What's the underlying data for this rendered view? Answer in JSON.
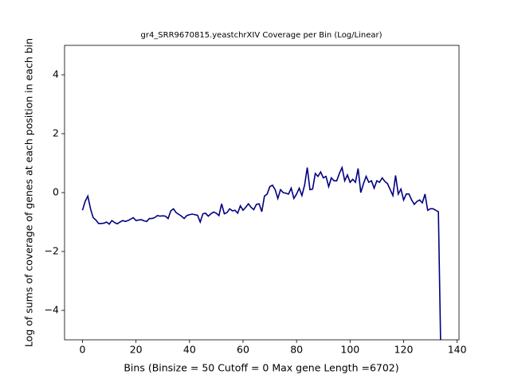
{
  "chart_data": {
    "type": "line",
    "title": "gr4_SRR9670815.yeastchrXIV Coverage per Bin (Log/Linear)",
    "x_label": "Bins  (Binsize = 50 Cutoff = 0 Max gene Length =6702)",
    "y_label": "Log of sums of coverage of genes at each position in each bin",
    "color": "#000080",
    "x": [
      0,
      1,
      2,
      3,
      4,
      5,
      6,
      7,
      8,
      9,
      10,
      11,
      12,
      13,
      14,
      15,
      16,
      17,
      18,
      19,
      20,
      21,
      22,
      23,
      24,
      25,
      26,
      27,
      28,
      29,
      30,
      31,
      32,
      33,
      34,
      35,
      36,
      37,
      38,
      39,
      40,
      41,
      42,
      43,
      44,
      45,
      46,
      47,
      48,
      49,
      50,
      51,
      52,
      53,
      54,
      55,
      56,
      57,
      58,
      59,
      60,
      61,
      62,
      63,
      64,
      65,
      66,
      67,
      68,
      69,
      70,
      71,
      72,
      73,
      74,
      75,
      76,
      77,
      78,
      79,
      80,
      81,
      82,
      83,
      84,
      85,
      86,
      87,
      88,
      89,
      90,
      91,
      92,
      93,
      94,
      95,
      96,
      97,
      98,
      99,
      100,
      101,
      102,
      103,
      104,
      105,
      106,
      107,
      108,
      109,
      110,
      111,
      112,
      113,
      114,
      115,
      116,
      117,
      118,
      119,
      120,
      121,
      122,
      123,
      124,
      125,
      126,
      127,
      128,
      129,
      130,
      131,
      132,
      133,
      134
    ],
    "values": [
      -0.6,
      -0.3,
      -0.12,
      -0.55,
      -0.85,
      -0.93,
      -1.05,
      -1.05,
      -1.04,
      -1.0,
      -1.07,
      -0.95,
      -1.02,
      -1.06,
      -1.0,
      -0.95,
      -0.98,
      -0.95,
      -0.9,
      -0.85,
      -0.95,
      -0.93,
      -0.92,
      -0.96,
      -0.98,
      -0.88,
      -0.88,
      -0.85,
      -0.78,
      -0.8,
      -0.79,
      -0.8,
      -0.88,
      -0.62,
      -0.55,
      -0.68,
      -0.74,
      -0.8,
      -0.88,
      -0.78,
      -0.75,
      -0.73,
      -0.75,
      -0.77,
      -1.0,
      -0.72,
      -0.7,
      -0.8,
      -0.72,
      -0.66,
      -0.7,
      -0.78,
      -0.38,
      -0.72,
      -0.68,
      -0.55,
      -0.62,
      -0.6,
      -0.7,
      -0.45,
      -0.6,
      -0.5,
      -0.38,
      -0.5,
      -0.58,
      -0.4,
      -0.38,
      -0.65,
      -0.12,
      -0.05,
      0.2,
      0.25,
      0.1,
      -0.2,
      0.1,
      0.0,
      -0.02,
      -0.05,
      0.15,
      -0.2,
      -0.05,
      0.15,
      -0.1,
      0.25,
      0.85,
      0.1,
      0.12,
      0.65,
      0.55,
      0.7,
      0.5,
      0.55,
      0.2,
      0.5,
      0.4,
      0.4,
      0.65,
      0.85,
      0.4,
      0.6,
      0.35,
      0.45,
      0.35,
      0.82,
      0.0,
      0.3,
      0.55,
      0.35,
      0.4,
      0.15,
      0.4,
      0.35,
      0.5,
      0.38,
      0.3,
      0.1,
      -0.1,
      0.58,
      -0.05,
      0.12,
      -0.25,
      -0.05,
      -0.05,
      -0.25,
      -0.4,
      -0.3,
      -0.25,
      -0.35,
      -0.05,
      -0.6,
      -0.55,
      -0.55,
      -0.6,
      -0.65,
      -6
    ],
    "xlim": [
      -6.7,
      140.7
    ],
    "ylim": [
      -5,
      5
    ],
    "xticks": [
      0,
      20,
      40,
      60,
      80,
      100,
      120,
      140
    ],
    "yticks": [
      {
        "value": -4,
        "label": "−4"
      },
      {
        "value": -2,
        "label": "−2"
      },
      0,
      2,
      4
    ]
  }
}
